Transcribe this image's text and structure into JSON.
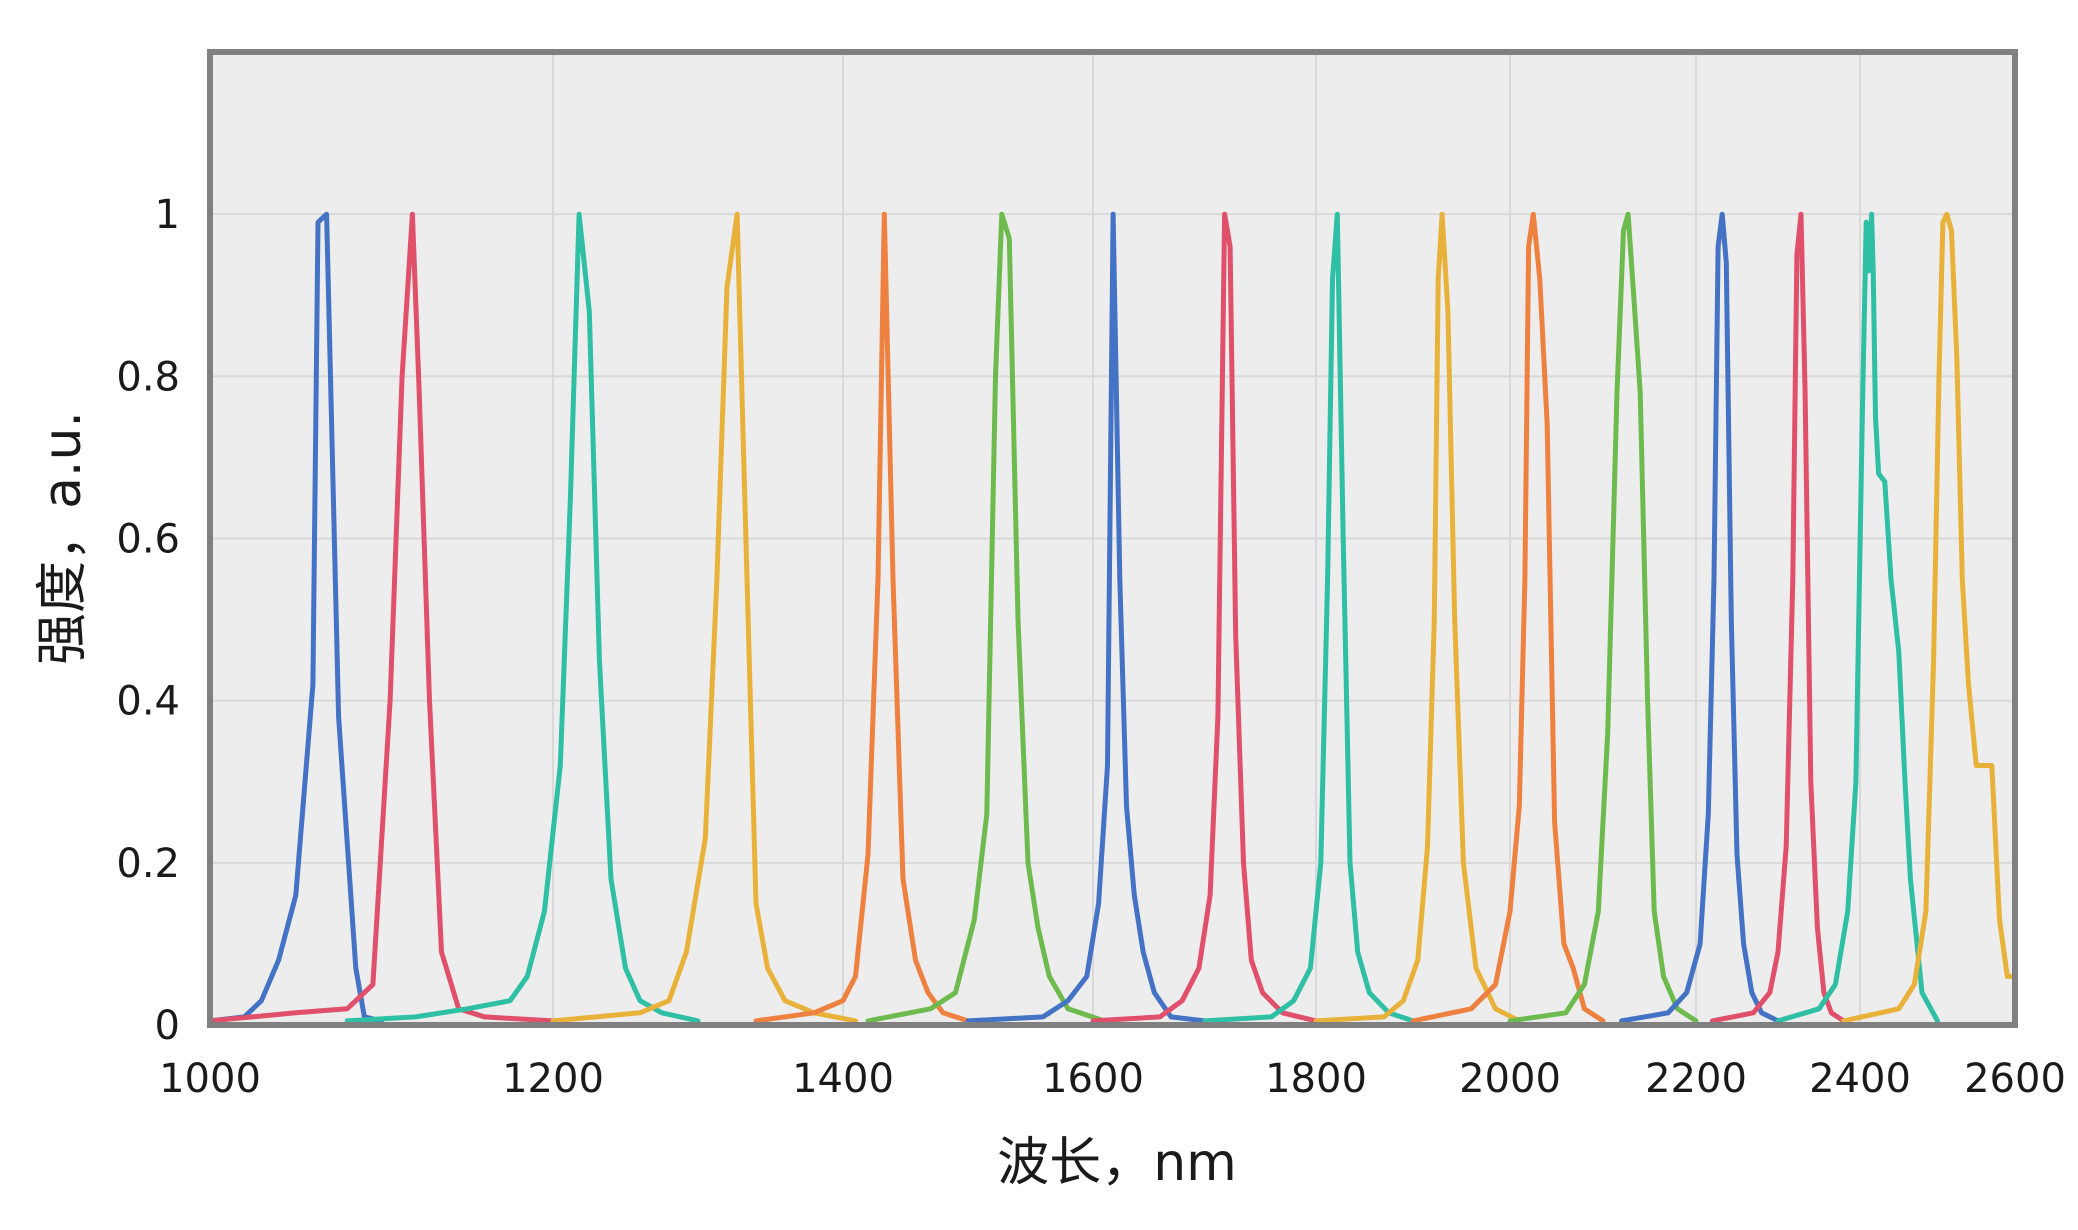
{
  "chart_data": {
    "type": "line",
    "title": "",
    "xlabel": "波长，nm",
    "ylabel": "强度，a.u.",
    "xlim": [
      1000,
      2600
    ],
    "ylim": [
      0,
      1.2
    ],
    "x_ticks": [
      1000,
      1200,
      1400,
      1600,
      1800,
      2000,
      2200,
      2400,
      2600
    ],
    "y_ticks": [
      0,
      0.2,
      0.4,
      0.6,
      0.8,
      1
    ],
    "y_tick_labels": [
      "0",
      "0.2",
      "0.4",
      "0.6",
      "0.8",
      "1"
    ],
    "x_axis_scale": "nonlinear (tick spacing narrows toward longer wavelengths)",
    "grid": true,
    "legend": "none",
    "colors": {
      "blue": "#4472C4",
      "red": "#E0506A",
      "teal": "#2EBFA5",
      "yellow": "#E8B23A",
      "orange": "#EE8140",
      "green": "#6DBB4E",
      "plot_background": "#EDEDED",
      "frame": "#808080",
      "grid": "#D9D9D9"
    },
    "series": [
      {
        "color": "#4472C4",
        "x": [
          1000,
          1020,
          1030,
          1040,
          1050,
          1060,
          1063,
          1068,
          1075,
          1085,
          1090,
          1100
        ],
        "y": [
          0.005,
          0.01,
          0.03,
          0.08,
          0.16,
          0.42,
          0.99,
          1.0,
          0.38,
          0.07,
          0.01,
          0.005
        ]
      },
      {
        "color": "#E0506A",
        "x": [
          1000,
          1050,
          1080,
          1095,
          1105,
          1112,
          1118,
          1122,
          1128,
          1135,
          1145,
          1160,
          1200
        ],
        "y": [
          0.005,
          0.015,
          0.02,
          0.05,
          0.4,
          0.8,
          1.0,
          0.78,
          0.4,
          0.09,
          0.02,
          0.01,
          0.005
        ]
      },
      {
        "color": "#2EBFA5",
        "x": [
          1080,
          1120,
          1150,
          1175,
          1185,
          1195,
          1205,
          1212,
          1218,
          1225,
          1232,
          1240,
          1250,
          1260,
          1275,
          1300
        ],
        "y": [
          0.005,
          0.01,
          0.02,
          0.03,
          0.06,
          0.14,
          0.32,
          0.65,
          1.0,
          0.88,
          0.45,
          0.18,
          0.07,
          0.03,
          0.015,
          0.005
        ]
      },
      {
        "color": "#E8B23A",
        "x": [
          1200,
          1260,
          1280,
          1292,
          1305,
          1313,
          1320,
          1327,
          1333,
          1340,
          1348,
          1360,
          1380,
          1410
        ],
        "y": [
          0.005,
          0.015,
          0.03,
          0.09,
          0.23,
          0.55,
          0.91,
          1.0,
          0.6,
          0.15,
          0.07,
          0.03,
          0.015,
          0.005
        ]
      },
      {
        "color": "#EE8140",
        "x": [
          1340,
          1380,
          1400,
          1410,
          1420,
          1428,
          1433,
          1440,
          1448,
          1458,
          1468,
          1480,
          1500
        ],
        "y": [
          0.005,
          0.015,
          0.03,
          0.06,
          0.21,
          0.55,
          1.0,
          0.55,
          0.18,
          0.08,
          0.04,
          0.015,
          0.005
        ]
      },
      {
        "color": "#6DBB4E",
        "x": [
          1420,
          1470,
          1490,
          1505,
          1515,
          1522,
          1527,
          1533,
          1540,
          1548,
          1556,
          1565,
          1580,
          1610
        ],
        "y": [
          0.005,
          0.02,
          0.04,
          0.13,
          0.26,
          0.8,
          1.0,
          0.97,
          0.5,
          0.2,
          0.12,
          0.06,
          0.02,
          0.005
        ]
      },
      {
        "color": "#4472C4",
        "x": [
          1500,
          1560,
          1580,
          1595,
          1605,
          1613,
          1618,
          1624,
          1630,
          1637,
          1645,
          1655,
          1670,
          1700
        ],
        "y": [
          0.005,
          0.01,
          0.03,
          0.06,
          0.15,
          0.32,
          1.0,
          0.55,
          0.27,
          0.16,
          0.09,
          0.04,
          0.01,
          0.005
        ]
      },
      {
        "color": "#E0506A",
        "x": [
          1600,
          1660,
          1680,
          1695,
          1705,
          1712,
          1718,
          1723,
          1728,
          1735,
          1742,
          1752,
          1770,
          1800
        ],
        "y": [
          0.005,
          0.01,
          0.03,
          0.07,
          0.16,
          0.38,
          1.0,
          0.96,
          0.48,
          0.2,
          0.08,
          0.04,
          0.015,
          0.005
        ]
      },
      {
        "color": "#2EBFA5",
        "x": [
          1700,
          1760,
          1780,
          1795,
          1805,
          1812,
          1817,
          1822,
          1828,
          1835,
          1843,
          1855,
          1875,
          1900
        ],
        "y": [
          0.005,
          0.01,
          0.03,
          0.07,
          0.2,
          0.55,
          0.92,
          1.0,
          0.6,
          0.2,
          0.09,
          0.04,
          0.015,
          0.005
        ]
      },
      {
        "color": "#E8B23A",
        "x": [
          1800,
          1870,
          1890,
          1905,
          1915,
          1922,
          1926,
          1930,
          1936,
          1943,
          1952,
          1965,
          1985,
          2010
        ],
        "y": [
          0.005,
          0.01,
          0.03,
          0.08,
          0.22,
          0.5,
          0.92,
          1.0,
          0.88,
          0.5,
          0.2,
          0.07,
          0.02,
          0.005
        ]
      },
      {
        "color": "#EE8140",
        "x": [
          1900,
          1960,
          1985,
          2000,
          2010,
          2016,
          2020,
          2025,
          2032,
          2040,
          2048,
          2058,
          2068,
          2080,
          2100
        ],
        "y": [
          0.005,
          0.02,
          0.05,
          0.14,
          0.27,
          0.55,
          0.96,
          1.0,
          0.92,
          0.74,
          0.25,
          0.1,
          0.07,
          0.02,
          0.005
        ]
      },
      {
        "color": "#6DBB4E",
        "x": [
          2000,
          2060,
          2080,
          2095,
          2105,
          2115,
          2122,
          2127,
          2133,
          2140,
          2148,
          2155,
          2165,
          2180,
          2200
        ],
        "y": [
          0.005,
          0.015,
          0.05,
          0.14,
          0.36,
          0.78,
          0.98,
          1.0,
          0.9,
          0.78,
          0.4,
          0.14,
          0.06,
          0.02,
          0.005
        ]
      },
      {
        "color": "#4472C4",
        "x": [
          2120,
          2170,
          2190,
          2205,
          2215,
          2222,
          2227,
          2232,
          2237,
          2243,
          2250,
          2258,
          2268,
          2280,
          2300
        ],
        "y": [
          0.005,
          0.015,
          0.04,
          0.1,
          0.26,
          0.55,
          0.96,
          1.0,
          0.94,
          0.5,
          0.21,
          0.1,
          0.04,
          0.015,
          0.005
        ]
      },
      {
        "color": "#E0506A",
        "x": [
          2220,
          2270,
          2290,
          2300,
          2310,
          2318,
          2323,
          2328,
          2333,
          2340,
          2348,
          2356,
          2365,
          2380
        ],
        "y": [
          0.005,
          0.015,
          0.04,
          0.09,
          0.22,
          0.55,
          0.95,
          1.0,
          0.78,
          0.3,
          0.12,
          0.04,
          0.015,
          0.005
        ]
      },
      {
        "color": "#2EBFA5",
        "x": [
          2300,
          2350,
          2370,
          2385,
          2395,
          2403,
          2408,
          2411,
          2413,
          2415,
          2417,
          2420,
          2424,
          2432,
          2440,
          2450,
          2458,
          2465,
          2480,
          2500
        ],
        "y": [
          0.005,
          0.02,
          0.05,
          0.14,
          0.3,
          0.75,
          0.99,
          0.93,
          0.96,
          1.0,
          0.93,
          0.75,
          0.68,
          0.67,
          0.55,
          0.46,
          0.3,
          0.18,
          0.04,
          0.005
        ]
      },
      {
        "color": "#E8B23A",
        "x": [
          2380,
          2450,
          2470,
          2485,
          2495,
          2502,
          2507,
          2512,
          2518,
          2525,
          2532,
          2540,
          2550,
          2560,
          2570,
          2580,
          2590,
          2600
        ],
        "y": [
          0.005,
          0.02,
          0.05,
          0.14,
          0.45,
          0.8,
          0.99,
          1.0,
          0.98,
          0.82,
          0.55,
          0.42,
          0.32,
          0.32,
          0.32,
          0.13,
          0.06,
          0.06
        ]
      }
    ]
  }
}
